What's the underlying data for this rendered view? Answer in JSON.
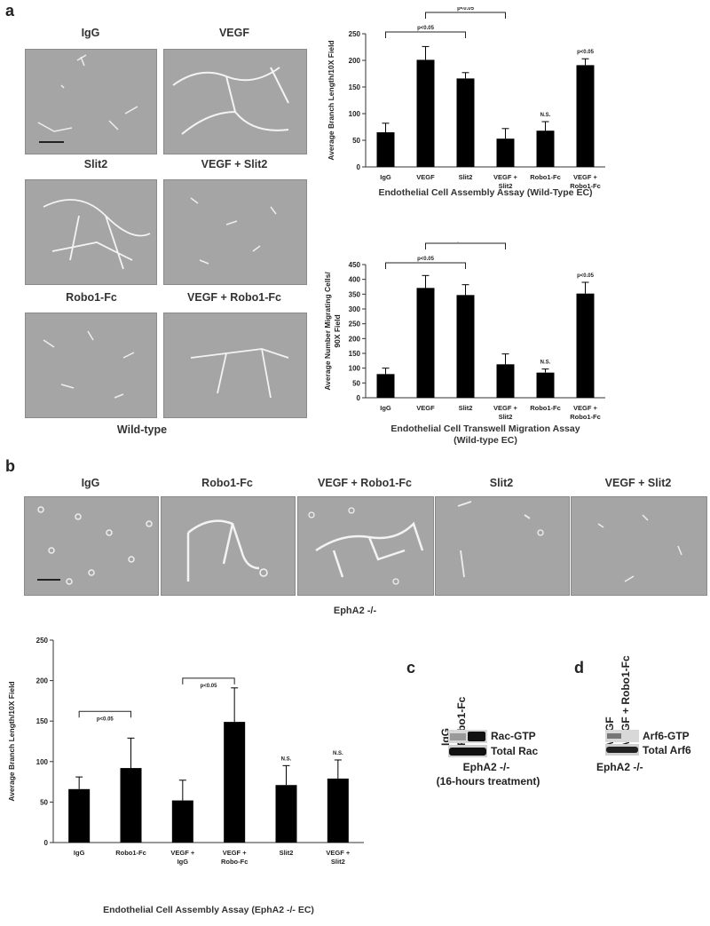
{
  "panel_a": {
    "letter": "a",
    "images": [
      {
        "label": "IgG"
      },
      {
        "label": "VEGF"
      },
      {
        "label": "Slit2"
      },
      {
        "label": "VEGF + Slit2"
      },
      {
        "label": "Robo1-Fc"
      },
      {
        "label": "VEGF + Robo1-Fc"
      }
    ],
    "images_caption": "Wild-type"
  },
  "panel_b": {
    "letter": "b",
    "images": [
      {
        "label": "IgG"
      },
      {
        "label": "Robo1-Fc"
      },
      {
        "label": "VEGF + Robo1-Fc"
      },
      {
        "label": "Slit2"
      },
      {
        "label": "VEGF + Slit2"
      }
    ],
    "images_caption": "EphA2 -/-"
  },
  "panel_c": {
    "letter": "c",
    "lanes": [
      "IgG",
      "Robo1-Fc"
    ],
    "bands": [
      "Rac-GTP",
      "Total Rac"
    ],
    "caption_line1": "EphA2 -/-",
    "caption_line2": "(16-hours treatment)"
  },
  "panel_d": {
    "letter": "d",
    "lanes": [
      "VEGF",
      "VEGF + Robo1-Fc"
    ],
    "bands": [
      "Arf6-GTP",
      "Total Arf6"
    ],
    "caption": "EphA2 -/-"
  },
  "chart_data": [
    {
      "id": "assembly-wt",
      "type": "bar",
      "title": "Endothelial Cell Assembly Assay (Wild-Type EC)",
      "ylabel": "Average Branch Length/10X Field",
      "categories": [
        [
          "IgG"
        ],
        [
          "VEGF"
        ],
        [
          "Slit2"
        ],
        [
          "VEGF +",
          "Slit2"
        ],
        [
          "Robo1-Fc"
        ],
        [
          "VEGF +",
          "Robo1-Fc"
        ]
      ],
      "values": [
        65,
        201,
        166,
        53,
        68,
        191
      ],
      "errors": [
        17,
        25,
        11,
        19,
        17,
        12
      ],
      "ylim": [
        0,
        250
      ],
      "yticks": [
        0,
        50,
        100,
        150,
        200,
        250
      ],
      "annotations": [
        {
          "bar": 4,
          "text": "N.S."
        },
        {
          "bar": 5,
          "text": "p<0.05"
        }
      ],
      "brackets": [
        {
          "from": 0,
          "to": 2,
          "text": "p<0.05",
          "level": 0
        },
        {
          "from": 1,
          "to": 3,
          "text": "p<0.05",
          "level": 1
        }
      ]
    },
    {
      "id": "migration-wt",
      "type": "bar",
      "title": "Endothelial Cell Transwell Migration Assay",
      "subtitle": "(Wild-type EC)",
      "ylabel_lines": [
        "Average Number Migrating Cells/",
        "90X Field"
      ],
      "categories": [
        [
          "IgG"
        ],
        [
          "VEGF"
        ],
        [
          "Slit2"
        ],
        [
          "VEGF +",
          "Slit2"
        ],
        [
          "Robo1-Fc"
        ],
        [
          "VEGF +",
          "Robo1-Fc"
        ]
      ],
      "values": [
        80,
        371,
        347,
        113,
        85,
        352
      ],
      "errors": [
        20,
        42,
        35,
        35,
        12,
        38
      ],
      "ylim": [
        0,
        450
      ],
      "yticks": [
        0,
        50,
        100,
        150,
        200,
        250,
        300,
        350,
        400,
        450
      ],
      "annotations": [
        {
          "bar": 4,
          "text": "N.S."
        },
        {
          "bar": 5,
          "text": "p<0.05"
        }
      ],
      "brackets": [
        {
          "from": 0,
          "to": 2,
          "text": "p<0.05",
          "level": 0
        },
        {
          "from": 1,
          "to": 3,
          "text": "p<0.05",
          "level": 1
        }
      ]
    },
    {
      "id": "assembly-epha2",
      "type": "bar",
      "title": "Endothelial Cell Assembly Assay (EphA2 -/- EC)",
      "ylabel": "Average Branch Length/10X Field",
      "categories": [
        [
          "IgG"
        ],
        [
          "Robo1-Fc"
        ],
        [
          "VEGF +",
          "IgG"
        ],
        [
          "VEGF +",
          "Robo-Fc"
        ],
        [
          "Slit2"
        ],
        [
          "VEGF +",
          "Slit2"
        ]
      ],
      "values": [
        66,
        92,
        52,
        149,
        71,
        79
      ],
      "errors": [
        15,
        37,
        25,
        42,
        24,
        23
      ],
      "ylim": [
        0,
        250
      ],
      "yticks": [
        0,
        50,
        100,
        150,
        200,
        250
      ],
      "annotations": [
        {
          "bar": 4,
          "text": "N.S."
        },
        {
          "bar": 5,
          "text": "N.S."
        }
      ],
      "brackets": [
        {
          "from": 0,
          "to": 1,
          "text": "p<0.05",
          "value": 162
        },
        {
          "from": 2,
          "to": 3,
          "text": "p<0.05",
          "value": 203
        }
      ]
    }
  ]
}
